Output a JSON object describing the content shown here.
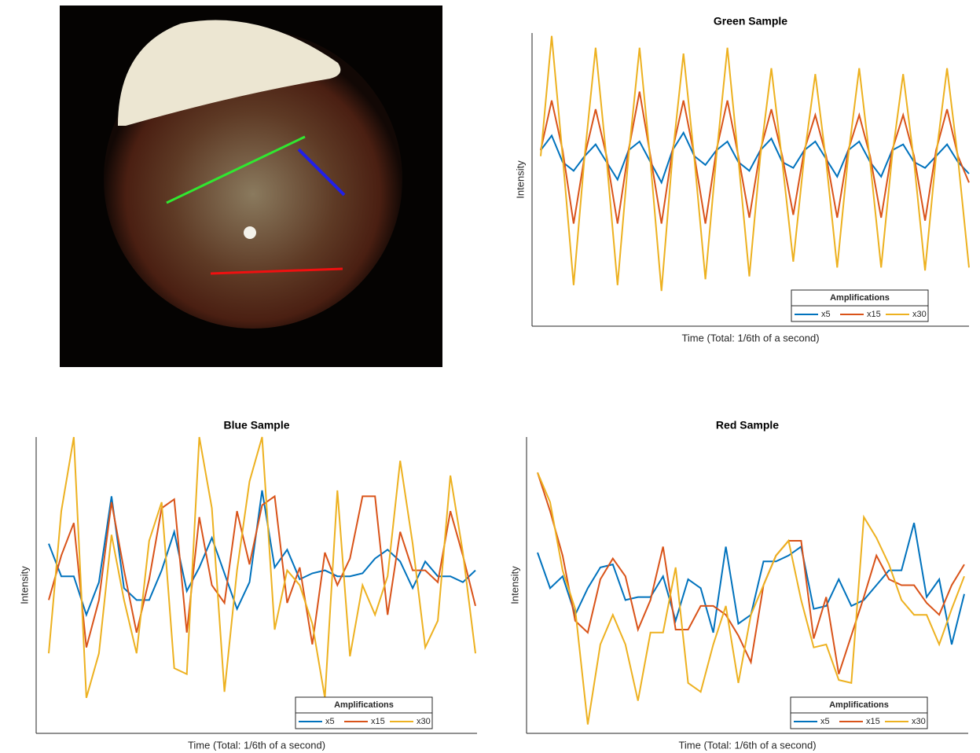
{
  "chart_data": [
    {
      "type": "line",
      "title": "Green Sample",
      "xlabel": "Time (Total: 1/6th of a second)",
      "ylabel": "Intensity",
      "legend_title": "Amplifications",
      "legend": "lower right",
      "ylim": [
        0,
        100
      ],
      "series": [
        {
          "name": "x5",
          "color": "#0072bd",
          "values": [
            60,
            65,
            56,
            53,
            58,
            62,
            56,
            50,
            60,
            63,
            56,
            49,
            60,
            66,
            58,
            55,
            60,
            63,
            56,
            53,
            60,
            64,
            56,
            54,
            60,
            63,
            57,
            51,
            60,
            63,
            56,
            51,
            60,
            62,
            56,
            54,
            58,
            62,
            56,
            52
          ]
        },
        {
          "name": "x15",
          "color": "#d95319",
          "values": [
            60,
            77,
            60,
            35,
            58,
            74,
            58,
            35,
            60,
            80,
            58,
            35,
            60,
            77,
            58,
            35,
            60,
            77,
            58,
            37,
            60,
            74,
            58,
            38,
            60,
            72,
            58,
            37,
            60,
            72,
            58,
            37,
            60,
            72,
            58,
            36,
            60,
            74,
            58,
            49
          ]
        },
        {
          "name": "x30",
          "color": "#edb120",
          "values": [
            58,
            99,
            58,
            14,
            58,
            95,
            57,
            14,
            58,
            95,
            56,
            12,
            58,
            93,
            57,
            16,
            58,
            95,
            57,
            17,
            58,
            88,
            56,
            22,
            58,
            86,
            56,
            20,
            58,
            88,
            56,
            20,
            58,
            86,
            56,
            19,
            58,
            88,
            57,
            20
          ]
        }
      ]
    },
    {
      "type": "line",
      "title": "Blue Sample",
      "xlabel": "Time (Total: 1/6th of a second)",
      "ylabel": "Intensity",
      "legend_title": "Amplifications",
      "legend": "lower right",
      "ylim": [
        0,
        100
      ],
      "series": [
        {
          "name": "x5",
          "color": "#0072bd",
          "values": [
            64,
            53,
            53,
            40,
            51,
            80,
            49,
            45,
            45,
            55,
            68,
            48,
            56,
            66,
            54,
            42,
            51,
            82,
            56,
            62,
            52,
            54,
            55,
            53,
            53,
            54,
            59,
            62,
            58,
            49,
            58,
            53,
            53,
            51,
            55
          ]
        },
        {
          "name": "x15",
          "color": "#d95319",
          "values": [
            45,
            60,
            71,
            29,
            45,
            78,
            55,
            34,
            52,
            76,
            79,
            34,
            73,
            50,
            44,
            75,
            57,
            77,
            80,
            44,
            56,
            30,
            61,
            50,
            59,
            80,
            80,
            40,
            68,
            55,
            55,
            51,
            75,
            60,
            43
          ]
        },
        {
          "name": "x30",
          "color": "#edb120",
          "values": [
            27,
            75,
            100,
            12,
            27,
            67,
            45,
            27,
            65,
            78,
            22,
            20,
            100,
            76,
            14,
            55,
            85,
            100,
            35,
            55,
            50,
            37,
            12,
            82,
            26,
            50,
            40,
            53,
            92,
            64,
            29,
            38,
            87,
            61,
            27
          ]
        }
      ]
    },
    {
      "type": "line",
      "title": "Red Sample",
      "xlabel": "Time (Total: 1/6th of a second)",
      "ylabel": "Intensity",
      "legend_title": "Amplifications",
      "legend": "lower right",
      "ylim": [
        0,
        100
      ],
      "series": [
        {
          "name": "x5",
          "color": "#0072bd",
          "values": [
            61,
            49,
            53,
            40,
            49,
            56,
            57,
            45,
            46,
            46,
            53,
            38,
            52,
            49,
            34,
            63,
            37,
            40,
            58,
            58,
            60,
            63,
            42,
            43,
            52,
            43,
            45,
            50,
            55,
            55,
            71,
            46,
            52,
            30,
            47
          ]
        },
        {
          "name": "x15",
          "color": "#d95319",
          "values": [
            88,
            75,
            60,
            38,
            34,
            52,
            59,
            53,
            35,
            45,
            63,
            35,
            35,
            43,
            43,
            40,
            33,
            24,
            50,
            60,
            65,
            65,
            32,
            46,
            20,
            33,
            46,
            60,
            52,
            50,
            50,
            44,
            40,
            50,
            57
          ]
        },
        {
          "name": "x30",
          "color": "#edb120",
          "values": [
            88,
            78,
            55,
            42,
            3,
            30,
            40,
            30,
            11,
            34,
            34,
            56,
            17,
            14,
            30,
            43,
            17,
            40,
            50,
            60,
            65,
            45,
            29,
            30,
            18,
            17,
            73,
            66,
            57,
            45,
            40,
            40,
            30,
            42,
            53
          ]
        }
      ]
    }
  ]
}
